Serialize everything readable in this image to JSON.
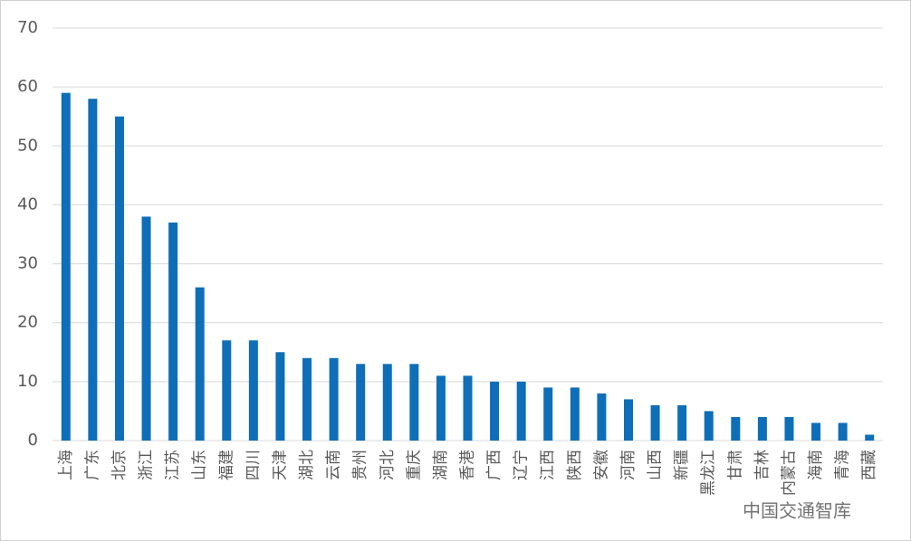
{
  "chart_data": {
    "type": "bar",
    "categories": [
      "上海",
      "广东",
      "北京",
      "浙江",
      "江苏",
      "山东",
      "福建",
      "四川",
      "天津",
      "湖北",
      "云南",
      "贵州",
      "河北",
      "重庆",
      "湖南",
      "香港",
      "广西",
      "辽宁",
      "江西",
      "陕西",
      "安徽",
      "河南",
      "山西",
      "新疆",
      "黑龙江",
      "甘肃",
      "吉林",
      "内蒙古",
      "海南",
      "青海",
      "西藏"
    ],
    "values": [
      59,
      58,
      55,
      38,
      37,
      26,
      17,
      17,
      15,
      14,
      14,
      13,
      13,
      13,
      11,
      11,
      10,
      10,
      9,
      9,
      8,
      7,
      6,
      6,
      5,
      4,
      4,
      4,
      3,
      3,
      1
    ],
    "color": "#0e6eb8",
    "ylim": [
      0,
      70
    ],
    "yticks": [
      0,
      10,
      20,
      30,
      40,
      50,
      60,
      70
    ],
    "grid": true,
    "watermark": "中国交通智库"
  }
}
